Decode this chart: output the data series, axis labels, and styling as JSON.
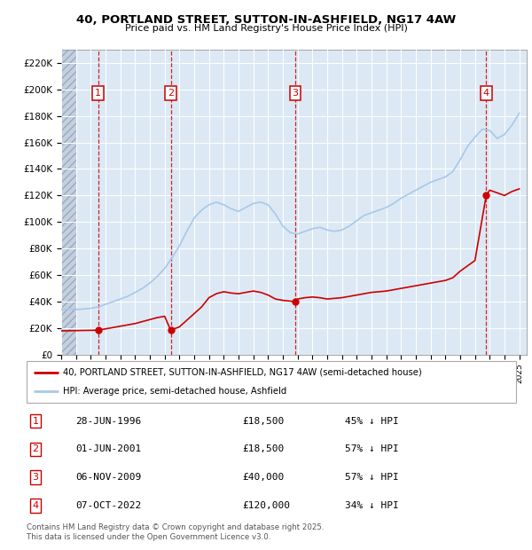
{
  "title": "40, PORTLAND STREET, SUTTON-IN-ASHFIELD, NG17 4AW",
  "subtitle": "Price paid vs. HM Land Registry's House Price Index (HPI)",
  "ylim": [
    0,
    230000
  ],
  "yticks": [
    0,
    20000,
    40000,
    60000,
    80000,
    100000,
    120000,
    140000,
    160000,
    180000,
    200000,
    220000
  ],
  "ytick_labels": [
    "£0",
    "£20K",
    "£40K",
    "£60K",
    "£80K",
    "£100K",
    "£120K",
    "£140K",
    "£160K",
    "£180K",
    "£200K",
    "£220K"
  ],
  "xlim_start": 1994.0,
  "xlim_end": 2025.5,
  "hpi_color": "#a8c8e8",
  "price_color": "#cc0000",
  "bg_color": "#dce9f5",
  "transactions": [
    {
      "date": "28-JUN-1996",
      "year": 1996.49,
      "price": 18500,
      "label": "1",
      "pct": "45%",
      "dir": "↓"
    },
    {
      "date": "01-JUN-2001",
      "year": 2001.41,
      "price": 18500,
      "label": "2",
      "pct": "57%",
      "dir": "↓"
    },
    {
      "date": "06-NOV-2009",
      "year": 2009.84,
      "price": 40000,
      "label": "3",
      "pct": "57%",
      "dir": "↓"
    },
    {
      "date": "07-OCT-2022",
      "year": 2022.76,
      "price": 120000,
      "label": "4",
      "pct": "34%",
      "dir": "↓"
    }
  ],
  "legend_label_red": "40, PORTLAND STREET, SUTTON-IN-ASHFIELD, NG17 4AW (semi-detached house)",
  "legend_label_blue": "HPI: Average price, semi-detached house, Ashfield",
  "footer": "Contains HM Land Registry data © Crown copyright and database right 2025.\nThis data is licensed under the Open Government Licence v3.0.",
  "hpi_data_years": [
    1994,
    1994.5,
    1995,
    1995.5,
    1996,
    1996.5,
    1997,
    1997.5,
    1998,
    1998.5,
    1999,
    1999.5,
    2000,
    2000.5,
    2001,
    2001.5,
    2002,
    2002.5,
    2003,
    2003.5,
    2004,
    2004.5,
    2005,
    2005.5,
    2006,
    2006.5,
    2007,
    2007.5,
    2008,
    2008.5,
    2009,
    2009.5,
    2010,
    2010.5,
    2011,
    2011.5,
    2012,
    2012.5,
    2013,
    2013.5,
    2014,
    2014.5,
    2015,
    2015.5,
    2016,
    2016.5,
    2017,
    2017.5,
    2018,
    2018.5,
    2019,
    2019.5,
    2020,
    2020.5,
    2021,
    2021.5,
    2022,
    2022.5,
    2023,
    2023.5,
    2024,
    2024.5,
    2025
  ],
  "hpi_data_values": [
    34000,
    34500,
    34000,
    34500,
    35000,
    36000,
    38000,
    40000,
    42000,
    44000,
    47000,
    50000,
    54000,
    59000,
    65000,
    73000,
    82000,
    93000,
    103000,
    109000,
    113000,
    115000,
    113000,
    110000,
    108000,
    111000,
    114000,
    115000,
    113000,
    106000,
    97000,
    92000,
    91000,
    93000,
    95000,
    96000,
    94000,
    93000,
    94000,
    97000,
    101000,
    105000,
    107000,
    109000,
    111000,
    114000,
    118000,
    121000,
    124000,
    127000,
    130000,
    132000,
    134000,
    138000,
    147000,
    157000,
    164000,
    170000,
    169000,
    163000,
    166000,
    173000,
    182000
  ],
  "price_data_years": [
    1994,
    1994.5,
    1995,
    1995.5,
    1996,
    1996.49,
    1997,
    1997.5,
    1998,
    1998.5,
    1999,
    1999.5,
    2000,
    2000.5,
    2001,
    2001.41,
    2002,
    2002.5,
    2003,
    2003.5,
    2004,
    2004.5,
    2005,
    2005.5,
    2006,
    2006.5,
    2007,
    2007.5,
    2008,
    2008.5,
    2009,
    2009.84,
    2010,
    2010.5,
    2011,
    2011.5,
    2012,
    2012.5,
    2013,
    2013.5,
    2014,
    2014.5,
    2015,
    2015.5,
    2016,
    2016.5,
    2017,
    2017.5,
    2018,
    2018.5,
    2019,
    2019.5,
    2020,
    2020.5,
    2021,
    2021.5,
    2022,
    2022.76,
    2023,
    2023.5,
    2024,
    2024.5,
    2025
  ],
  "price_data_values": [
    18000,
    18100,
    18200,
    18300,
    18400,
    18500,
    19500,
    20500,
    21500,
    22500,
    23500,
    25000,
    26500,
    28000,
    29000,
    18500,
    21000,
    26000,
    31000,
    36000,
    43000,
    46000,
    47500,
    46500,
    46000,
    47000,
    48000,
    47000,
    45000,
    42000,
    41000,
    40000,
    42000,
    43000,
    43500,
    43000,
    42000,
    42500,
    43000,
    44000,
    45000,
    46000,
    47000,
    47500,
    48000,
    49000,
    50000,
    51000,
    52000,
    53000,
    54000,
    55000,
    56000,
    58000,
    63000,
    67000,
    71000,
    120000,
    124000,
    122000,
    120000,
    123000,
    125000
  ]
}
